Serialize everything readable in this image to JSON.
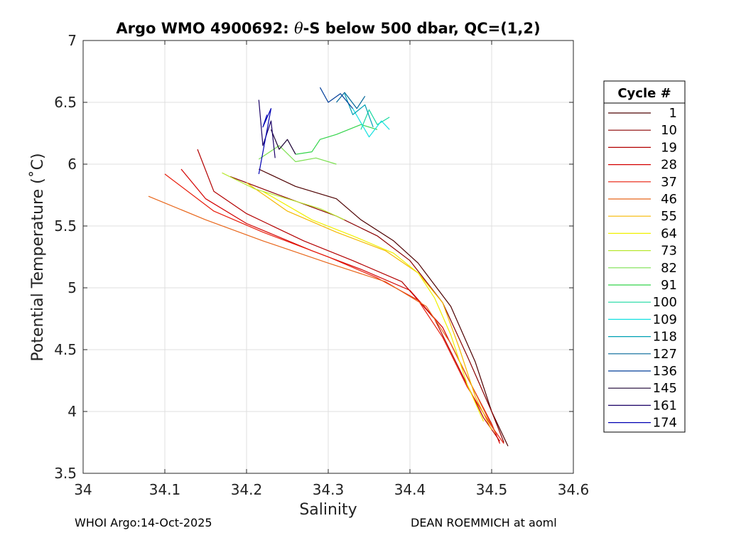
{
  "chart_data": {
    "type": "line",
    "title_prefix": "Argo WMO 4900692: ",
    "title_theta": "θ",
    "title_suffix": "-S below 500 dbar,  QC=(1,2)",
    "xlabel": "Salinity",
    "ylabel": "Potential Temperature (˚C)",
    "xlim": [
      34.0,
      34.6
    ],
    "ylim": [
      3.5,
      7.0
    ],
    "xticks": [
      34,
      34.1,
      34.2,
      34.3,
      34.4,
      34.5,
      34.6
    ],
    "xtick_labels": [
      "34",
      "34.1",
      "34.2",
      "34.3",
      "34.4",
      "34.5",
      "34.6"
    ],
    "yticks": [
      3.5,
      4,
      4.5,
      5,
      5.5,
      6,
      6.5,
      7
    ],
    "ytick_labels": [
      "3.5",
      "4",
      "4.5",
      "5",
      "5.5",
      "6",
      "6.5",
      "7"
    ],
    "grid": true,
    "legend_title": "Cycle #",
    "legend_position": "right-outside",
    "series": [
      {
        "name": "1",
        "color": "#4d0000",
        "points": [
          [
            34.215,
            5.96
          ],
          [
            34.26,
            5.82
          ],
          [
            34.31,
            5.72
          ],
          [
            34.34,
            5.55
          ],
          [
            34.38,
            5.38
          ],
          [
            34.41,
            5.2
          ],
          [
            34.45,
            4.85
          ],
          [
            34.48,
            4.4
          ],
          [
            34.5,
            4.0
          ],
          [
            34.52,
            3.72
          ]
        ]
      },
      {
        "name": "10",
        "color": "#8a0000",
        "points": [
          [
            34.18,
            5.9
          ],
          [
            34.24,
            5.75
          ],
          [
            34.31,
            5.58
          ],
          [
            34.36,
            5.42
          ],
          [
            34.4,
            5.22
          ],
          [
            34.44,
            4.88
          ],
          [
            34.47,
            4.45
          ],
          [
            34.5,
            4.0
          ],
          [
            34.515,
            3.75
          ]
        ]
      },
      {
        "name": "19",
        "color": "#b30000",
        "points": [
          [
            34.14,
            6.12
          ],
          [
            34.16,
            5.78
          ],
          [
            34.2,
            5.6
          ],
          [
            34.27,
            5.38
          ],
          [
            34.33,
            5.22
          ],
          [
            34.39,
            5.05
          ],
          [
            34.43,
            4.75
          ],
          [
            34.46,
            4.35
          ],
          [
            34.49,
            3.95
          ],
          [
            34.51,
            3.76
          ]
        ]
      },
      {
        "name": "28",
        "color": "#d40000",
        "points": [
          [
            34.12,
            5.96
          ],
          [
            34.15,
            5.72
          ],
          [
            34.2,
            5.52
          ],
          [
            34.28,
            5.3
          ],
          [
            34.34,
            5.15
          ],
          [
            34.4,
            4.98
          ],
          [
            34.44,
            4.68
          ],
          [
            34.47,
            4.28
          ],
          [
            34.5,
            3.9
          ],
          [
            34.51,
            3.74
          ]
        ]
      },
      {
        "name": "37",
        "color": "#e81c0a",
        "points": [
          [
            34.1,
            5.92
          ],
          [
            34.16,
            5.62
          ],
          [
            34.22,
            5.45
          ],
          [
            34.3,
            5.25
          ],
          [
            34.36,
            5.08
          ],
          [
            34.41,
            4.9
          ],
          [
            34.44,
            4.6
          ],
          [
            34.47,
            4.2
          ],
          [
            34.5,
            3.88
          ],
          [
            34.515,
            3.74
          ]
        ]
      },
      {
        "name": "46",
        "color": "#e8661a",
        "points": [
          [
            34.08,
            5.74
          ],
          [
            34.15,
            5.55
          ],
          [
            34.22,
            5.38
          ],
          [
            34.3,
            5.2
          ],
          [
            34.37,
            5.05
          ],
          [
            34.42,
            4.85
          ],
          [
            34.45,
            4.55
          ],
          [
            34.48,
            4.15
          ],
          [
            34.505,
            3.82
          ]
        ]
      },
      {
        "name": "55",
        "color": "#f5b800",
        "points": [
          [
            34.2,
            5.85
          ],
          [
            34.25,
            5.62
          ],
          [
            34.31,
            5.45
          ],
          [
            34.37,
            5.3
          ],
          [
            34.41,
            5.12
          ],
          [
            34.44,
            4.88
          ],
          [
            34.46,
            4.52
          ],
          [
            34.48,
            4.12
          ],
          [
            34.5,
            3.85
          ]
        ]
      },
      {
        "name": "64",
        "color": "#f0f000",
        "points": [
          [
            34.22,
            5.78
          ],
          [
            34.28,
            5.55
          ],
          [
            34.33,
            5.42
          ],
          [
            34.38,
            5.28
          ],
          [
            34.41,
            5.12
          ],
          [
            34.43,
            4.92
          ],
          [
            34.45,
            4.62
          ],
          [
            34.47,
            4.22
          ],
          [
            34.49,
            3.92
          ]
        ]
      },
      {
        "name": "73",
        "color": "#b8e830",
        "points": [
          [
            34.17,
            5.93
          ],
          [
            34.21,
            5.8
          ],
          [
            34.25,
            5.72
          ],
          [
            34.29,
            5.64
          ],
          [
            34.32,
            5.55
          ]
        ]
      },
      {
        "name": "82",
        "color": "#7ce050",
        "points": [
          [
            34.215,
            6.04
          ],
          [
            34.24,
            6.15
          ],
          [
            34.26,
            6.02
          ],
          [
            34.285,
            6.05
          ],
          [
            34.31,
            6.0
          ]
        ]
      },
      {
        "name": "91",
        "color": "#33d44a",
        "points": [
          [
            34.26,
            6.08
          ],
          [
            34.28,
            6.1
          ],
          [
            34.29,
            6.2
          ],
          [
            34.31,
            6.24
          ],
          [
            34.34,
            6.32
          ],
          [
            34.36,
            6.28
          ]
        ]
      },
      {
        "name": "100",
        "color": "#1ad9a0",
        "points": [
          [
            34.34,
            6.28
          ],
          [
            34.35,
            6.44
          ],
          [
            34.36,
            6.32
          ],
          [
            34.375,
            6.38
          ]
        ]
      },
      {
        "name": "109",
        "color": "#14e0e0",
        "points": [
          [
            34.33,
            6.45
          ],
          [
            34.35,
            6.22
          ],
          [
            34.365,
            6.35
          ],
          [
            34.375,
            6.28
          ]
        ]
      },
      {
        "name": "118",
        "color": "#00a0b4",
        "points": [
          [
            34.32,
            6.57
          ],
          [
            34.33,
            6.4
          ],
          [
            34.345,
            6.48
          ],
          [
            34.355,
            6.3
          ]
        ]
      },
      {
        "name": "127",
        "color": "#006699",
        "points": [
          [
            34.31,
            6.5
          ],
          [
            34.32,
            6.58
          ],
          [
            34.335,
            6.45
          ],
          [
            34.345,
            6.55
          ]
        ]
      },
      {
        "name": "136",
        "color": "#003d99",
        "points": [
          [
            34.29,
            6.62
          ],
          [
            34.3,
            6.5
          ],
          [
            34.315,
            6.57
          ],
          [
            34.33,
            6.45
          ]
        ]
      },
      {
        "name": "145",
        "color": "#1a0033",
        "points": [
          [
            34.23,
            6.28
          ],
          [
            34.24,
            6.12
          ],
          [
            34.25,
            6.2
          ],
          [
            34.26,
            6.08
          ]
        ]
      },
      {
        "name": "161",
        "color": "#1a0066",
        "points": [
          [
            34.215,
            6.52
          ],
          [
            34.22,
            6.15
          ],
          [
            34.23,
            6.35
          ],
          [
            34.235,
            6.05
          ]
        ]
      },
      {
        "name": "174",
        "color": "#0000b3",
        "points": [
          [
            34.225,
            6.4
          ],
          [
            34.22,
            6.3
          ],
          [
            34.23,
            6.45
          ],
          [
            34.215,
            5.92
          ]
        ]
      }
    ]
  },
  "footer": {
    "left": "WHOI Argo:14-Oct-2025",
    "right": "DEAN ROEMMICH at aoml"
  }
}
